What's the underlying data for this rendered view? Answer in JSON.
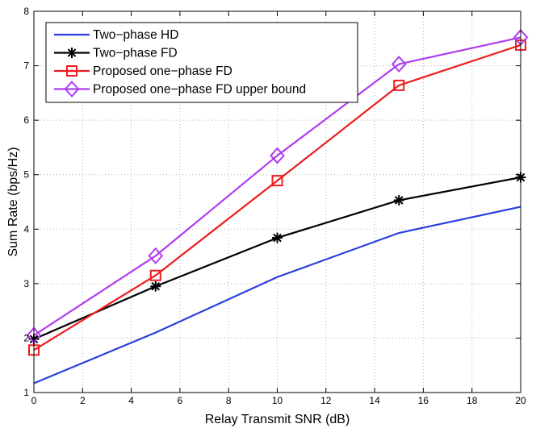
{
  "chart_data": {
    "type": "line",
    "title": "",
    "xlabel": "Relay Transmit SNR (dB)",
    "ylabel": "Sum Rate (bps/Hz)",
    "xlim": [
      0,
      20
    ],
    "ylim": [
      1,
      8
    ],
    "xticks": [
      0,
      2,
      4,
      6,
      8,
      10,
      12,
      14,
      16,
      18,
      20
    ],
    "yticks": [
      1,
      2,
      3,
      4,
      5,
      6,
      7,
      8
    ],
    "grid": true,
    "legend_position": "top-left",
    "x": [
      0,
      5,
      10,
      15,
      20
    ],
    "series": [
      {
        "name": "Two−phase HD",
        "values": [
          1.17,
          2.1,
          3.12,
          3.93,
          4.41
        ],
        "color": "#2b3fe0",
        "marker": "none"
      },
      {
        "name": "Two−phase FD",
        "values": [
          1.98,
          2.95,
          3.84,
          4.53,
          4.95
        ],
        "color": "#000000",
        "marker": "star"
      },
      {
        "name": "Proposed one−phase FD",
        "values": [
          1.78,
          3.15,
          4.89,
          6.64,
          7.38
        ],
        "color": "#ee1c1c",
        "marker": "square"
      },
      {
        "name": "Proposed one−phase FD upper bound",
        "values": [
          2.05,
          3.51,
          5.35,
          7.03,
          7.52
        ],
        "color": "#b13cee",
        "marker": "diamond"
      }
    ]
  }
}
